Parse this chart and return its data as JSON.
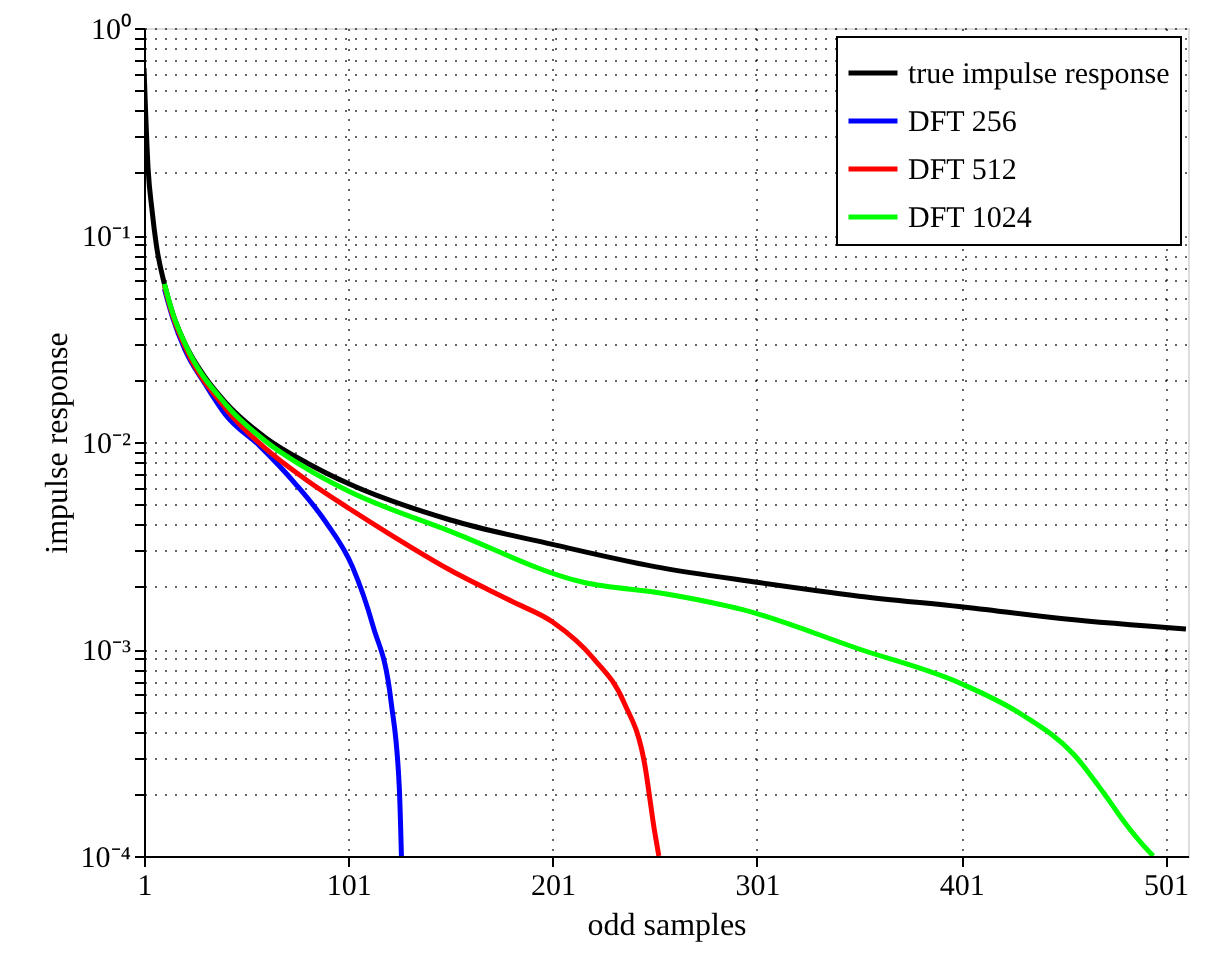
{
  "chart_data": {
    "type": "line",
    "xlabel": "odd samples",
    "ylabel": "impulse response",
    "log": "y",
    "grid": true,
    "legend": "top right",
    "line_style": "solid",
    "marker": "none",
    "xlim": [
      1,
      512
    ],
    "xticks": [
      1,
      101,
      201,
      301,
      401,
      501
    ],
    "ylim": [
      0.0001,
      1
    ],
    "yticks": [
      {
        "value": 0.0001,
        "label": "10⁻⁴"
      },
      {
        "value": 0.0002,
        "label": null
      },
      {
        "value": 0.0003,
        "label": null
      },
      {
        "value": 0.0004,
        "label": null
      },
      {
        "value": 0.0005,
        "label": null
      },
      {
        "value": 0.0006,
        "label": null
      },
      {
        "value": 0.0007,
        "label": null
      },
      {
        "value": 0.0008,
        "label": null
      },
      {
        "value": 0.0009,
        "label": null
      },
      {
        "value": 0.001,
        "label": "10⁻³"
      },
      {
        "value": 0.002,
        "label": null
      },
      {
        "value": 0.003,
        "label": null
      },
      {
        "value": 0.004,
        "label": null
      },
      {
        "value": 0.005,
        "label": null
      },
      {
        "value": 0.006,
        "label": null
      },
      {
        "value": 0.007,
        "label": null
      },
      {
        "value": 0.008,
        "label": null
      },
      {
        "value": 0.009,
        "label": null
      },
      {
        "value": 0.01,
        "label": "10⁻²"
      },
      {
        "value": 0.02,
        "label": null
      },
      {
        "value": 0.03,
        "label": null
      },
      {
        "value": 0.04,
        "label": null
      },
      {
        "value": 0.05,
        "label": null
      },
      {
        "value": 0.06,
        "label": null
      },
      {
        "value": 0.07,
        "label": null
      },
      {
        "value": 0.08,
        "label": null
      },
      {
        "value": 0.09,
        "label": null
      },
      {
        "value": 0.1,
        "label": "10⁻¹"
      },
      {
        "value": 0.2,
        "label": null
      },
      {
        "value": 0.3,
        "label": null
      },
      {
        "value": 0.4,
        "label": null
      },
      {
        "value": 0.5,
        "label": null
      },
      {
        "value": 0.6,
        "label": null
      },
      {
        "value": 0.7,
        "label": null
      },
      {
        "value": 0.8,
        "label": null
      },
      {
        "value": 0.9,
        "label": null
      },
      {
        "value": 1,
        "label": "10⁰"
      }
    ],
    "series": [
      {
        "name": "true impulse response",
        "color": "#000000",
        "x": [
          1,
          3,
          5,
          7,
          11,
          15,
          21,
          31,
          41,
          61,
          81,
          101,
          151,
          201,
          251,
          301,
          351,
          401,
          451,
          511
        ],
        "values": [
          0.64,
          0.21,
          0.13,
          0.09,
          0.058,
          0.042,
          0.03,
          0.0205,
          0.0155,
          0.0104,
          0.0079,
          0.0063,
          0.0042,
          0.0032,
          0.0025,
          0.0021,
          0.0018,
          0.0016,
          0.0014,
          0.00125
        ]
      },
      {
        "name": "DFT 256",
        "color": "#0000ff",
        "x": [
          11,
          15,
          21,
          31,
          41,
          58,
          75,
          90,
          103,
          113,
          122,
          126,
          127
        ],
        "values": [
          0.055,
          0.04,
          0.028,
          0.019,
          0.0135,
          0.0095,
          0.0063,
          0.0041,
          0.0025,
          0.0013,
          0.00055,
          0.00021,
          0.0001
        ]
      },
      {
        "name": "DFT 512",
        "color": "#ff0000",
        "x": [
          11,
          15,
          21,
          41,
          61,
          81,
          101,
          121,
          151,
          181,
          201,
          221,
          236,
          246,
          251,
          253
        ],
        "values": [
          0.057,
          0.041,
          0.029,
          0.0145,
          0.0092,
          0.0065,
          0.0048,
          0.0036,
          0.0024,
          0.0017,
          0.00135,
          0.0009,
          0.00055,
          0.00028,
          0.00013,
          0.0001
        ]
      },
      {
        "name": "DFT 1024",
        "color": "#00ff00",
        "x": [
          11,
          15,
          21,
          41,
          61,
          81,
          101,
          151,
          216,
          256,
          294,
          351,
          401,
          431,
          456,
          471,
          481,
          491,
          495
        ],
        "values": [
          0.058,
          0.042,
          0.03,
          0.0152,
          0.01,
          0.0074,
          0.0058,
          0.0037,
          0.0021,
          0.00185,
          0.00155,
          0.001,
          0.00068,
          0.00048,
          0.00031,
          0.0002,
          0.000145,
          0.00011,
          0.0001
        ]
      }
    ]
  }
}
